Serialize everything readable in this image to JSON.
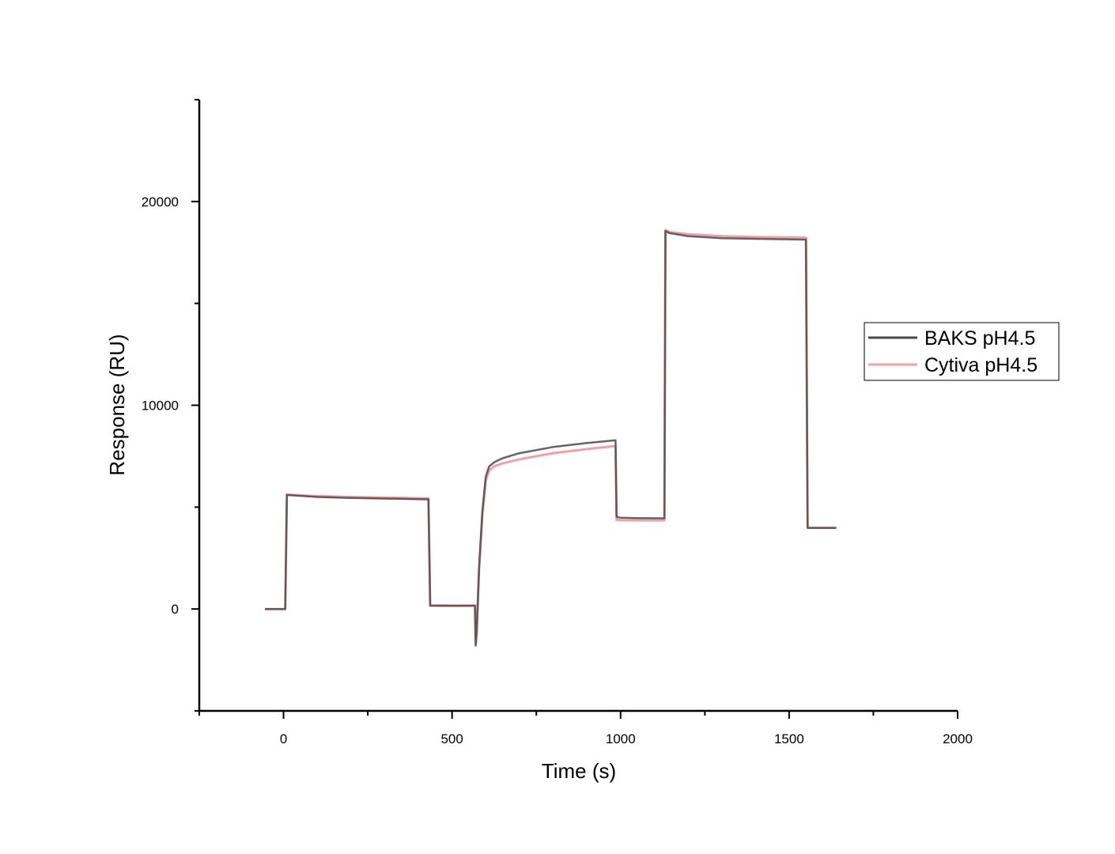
{
  "chart_data": {
    "type": "line",
    "title": "",
    "xlabel": "Time (s)",
    "ylabel": "Response (RU)",
    "xlim": [
      -250,
      2000
    ],
    "ylim": [
      -5000,
      25000
    ],
    "x_ticks": [
      0,
      500,
      1000,
      1500,
      2000
    ],
    "x_tick_labels": [
      "0",
      "500",
      "1000",
      "1500",
      "2000"
    ],
    "y_ticks": [
      0,
      10000,
      20000
    ],
    "y_tick_labels": [
      "0",
      "10000",
      "20000"
    ],
    "grid": false,
    "legend_position": "right",
    "series": [
      {
        "name": "BAKS pH4.5",
        "color": "#4a4a4a",
        "x": [
          -55,
          5,
          10,
          25,
          100,
          200,
          300,
          430,
          435,
          500,
          568,
          570,
          573,
          580,
          590,
          600,
          610,
          625,
          650,
          700,
          800,
          900,
          985,
          988,
          1000,
          1050,
          1130,
          1133,
          1145,
          1200,
          1300,
          1400,
          1550,
          1555,
          1640
        ],
        "y": [
          0,
          0,
          5600,
          5580,
          5500,
          5450,
          5420,
          5380,
          160,
          150,
          160,
          -1800,
          -1200,
          2000,
          4800,
          6500,
          7000,
          7200,
          7400,
          7650,
          7950,
          8150,
          8280,
          4520,
          4480,
          4460,
          4450,
          18550,
          18450,
          18300,
          18200,
          18170,
          18130,
          3980,
          3980
        ]
      },
      {
        "name": "Cytiva pH4.5",
        "color": "#f08080",
        "x": [
          -55,
          5,
          10,
          25,
          100,
          200,
          300,
          430,
          435,
          500,
          568,
          570,
          573,
          580,
          590,
          600,
          610,
          625,
          650,
          700,
          800,
          900,
          985,
          988,
          1000,
          1050,
          1130,
          1133,
          1145,
          1200,
          1300,
          1400,
          1550,
          1555,
          1640
        ],
        "y": [
          0,
          0,
          5620,
          5600,
          5540,
          5500,
          5470,
          5430,
          180,
          170,
          170,
          -1700,
          -1100,
          1900,
          4600,
          6300,
          6800,
          7000,
          7150,
          7350,
          7650,
          7850,
          8000,
          4380,
          4360,
          4350,
          4350,
          18600,
          18500,
          18400,
          18300,
          18260,
          18230,
          3990,
          3990
        ]
      }
    ]
  }
}
